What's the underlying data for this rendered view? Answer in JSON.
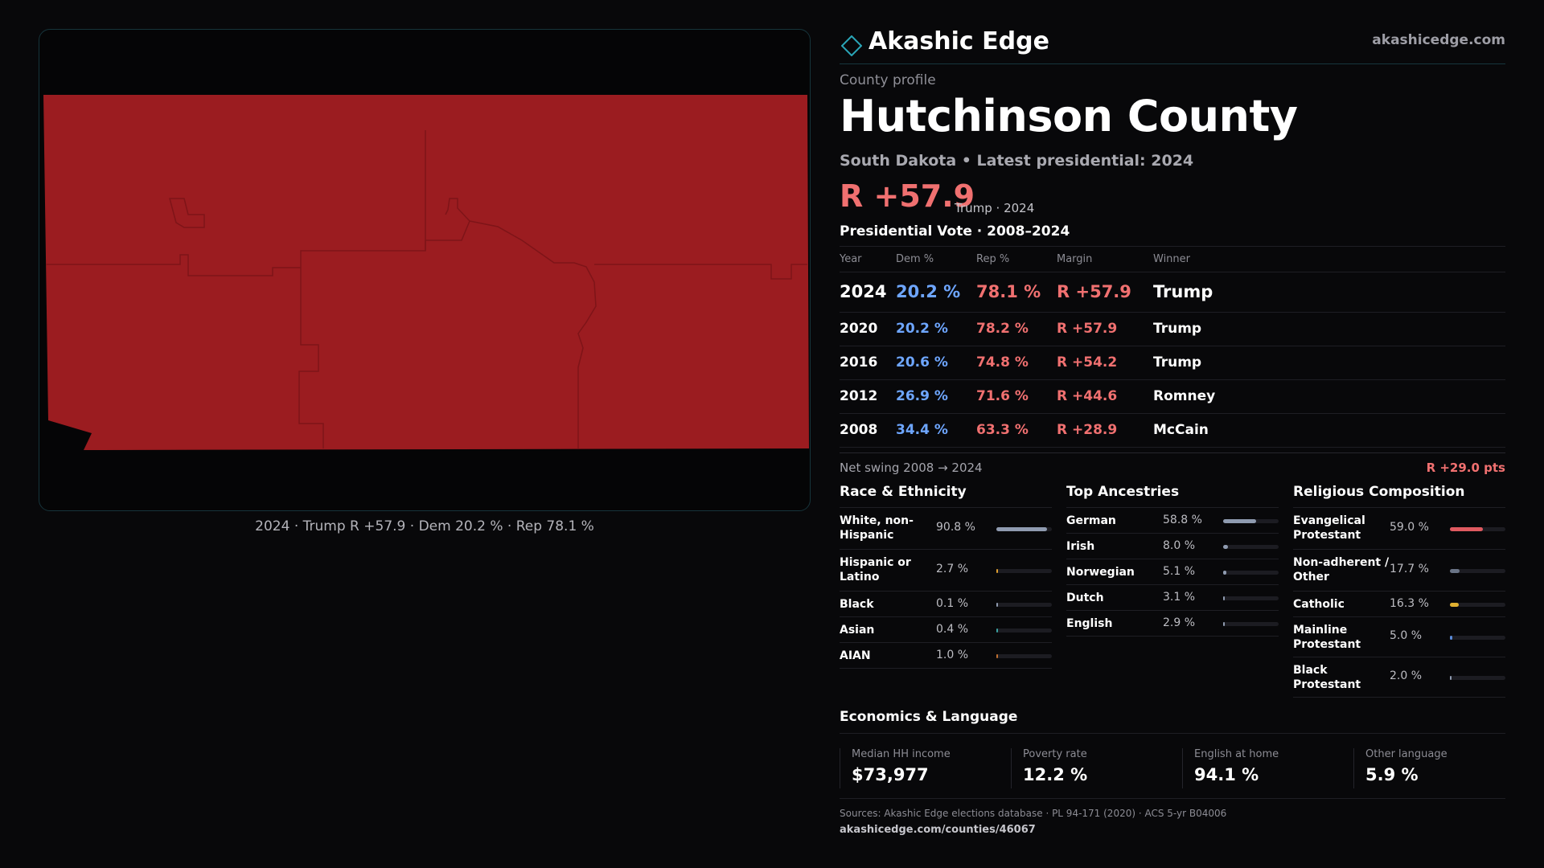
{
  "map": {
    "fill_color": "#9b1c20",
    "caption": "2024 · Trump R +57.9 · Dem 20.2 % · Rep 78.1 %"
  },
  "brand": {
    "name": "Akashic Edge",
    "url": "akashicedge.com",
    "logo_icon": "diamond-outline-icon"
  },
  "profile": {
    "kicker": "County profile",
    "title": "Hutchinson County",
    "subtitle": "South Dakota • Latest presidential: 2024",
    "margin": "R +57.9",
    "note": "Trump · 2024"
  },
  "vote": {
    "title": "Presidential Vote · 2008–2024",
    "headers": {
      "year": "Year",
      "dem": "Dem %",
      "rep": "Rep %",
      "margin": "Margin",
      "winner": "Winner"
    },
    "rows": [
      {
        "year": "2024",
        "dem": "20.2 %",
        "rep": "78.1 %",
        "margin": "R +57.9",
        "winner": "Trump"
      },
      {
        "year": "2020",
        "dem": "20.2 %",
        "rep": "78.2 %",
        "margin": "R +57.9",
        "winner": "Trump"
      },
      {
        "year": "2016",
        "dem": "20.6 %",
        "rep": "74.8 %",
        "margin": "R +54.2",
        "winner": "Trump"
      },
      {
        "year": "2012",
        "dem": "26.9 %",
        "rep": "71.6 %",
        "margin": "R +44.6",
        "winner": "Romney"
      },
      {
        "year": "2008",
        "dem": "34.4 %",
        "rep": "63.3 %",
        "margin": "R +28.9",
        "winner": "McCain"
      }
    ]
  },
  "swing": {
    "label": "Net swing 2008 → 2024",
    "value": "R +29.0 pts"
  },
  "race": {
    "title": "Race & Ethnicity",
    "items": [
      {
        "label": "White, non-Hispanic",
        "value": "90.8 %",
        "pct": 90.8,
        "color": "#8f9bb0"
      },
      {
        "label": "Hispanic or Latino",
        "value": "2.7 %",
        "pct": 2.7,
        "color": "#e0a030"
      },
      {
        "label": "Black",
        "value": "0.1 %",
        "pct": 0.1,
        "color": "#8f9bb0"
      },
      {
        "label": "Asian",
        "value": "0.4 %",
        "pct": 0.4,
        "color": "#3aa0a0"
      },
      {
        "label": "AIAN",
        "value": "1.0 %",
        "pct": 1.0,
        "color": "#c07030"
      }
    ]
  },
  "ancestry": {
    "title": "Top Ancestries",
    "items": [
      {
        "label": "German",
        "value": "58.8 %",
        "pct": 58.8,
        "color": "#8f9bb0"
      },
      {
        "label": "Irish",
        "value": "8.0 %",
        "pct": 8.0,
        "color": "#8f9bb0"
      },
      {
        "label": "Norwegian",
        "value": "5.1 %",
        "pct": 5.1,
        "color": "#8f9bb0"
      },
      {
        "label": "Dutch",
        "value": "3.1 %",
        "pct": 3.1,
        "color": "#8f9bb0"
      },
      {
        "label": "English",
        "value": "2.9 %",
        "pct": 2.9,
        "color": "#8f9bb0"
      }
    ]
  },
  "religion": {
    "title": "Religious Composition",
    "items": [
      {
        "label": "Evangelical Protestant",
        "value": "59.0 %",
        "pct": 59.0,
        "color": "#e05a60"
      },
      {
        "label": "Non-adherent / Other",
        "value": "17.7 %",
        "pct": 17.7,
        "color": "#6a7486"
      },
      {
        "label": "Catholic",
        "value": "16.3 %",
        "pct": 16.3,
        "color": "#e0b030"
      },
      {
        "label": "Mainline Protestant",
        "value": "5.0 %",
        "pct": 5.0,
        "color": "#5a8ad8"
      },
      {
        "label": "Black Protestant",
        "value": "2.0 %",
        "pct": 2.0,
        "color": "#8f9bb0"
      }
    ]
  },
  "econ": {
    "title": "Economics & Language",
    "stats": [
      {
        "label": "Median HH income",
        "value": "$73,977"
      },
      {
        "label": "Poverty rate",
        "value": "12.2 %"
      },
      {
        "label": "English at home",
        "value": "94.1 %"
      },
      {
        "label": "Other language",
        "value": "5.9 %"
      }
    ]
  },
  "sources": {
    "text": "Sources: Akashic Edge elections database · PL 94-171 (2020) · ACS 5-yr B04006",
    "url": "akashicedge.com/counties/46067"
  }
}
